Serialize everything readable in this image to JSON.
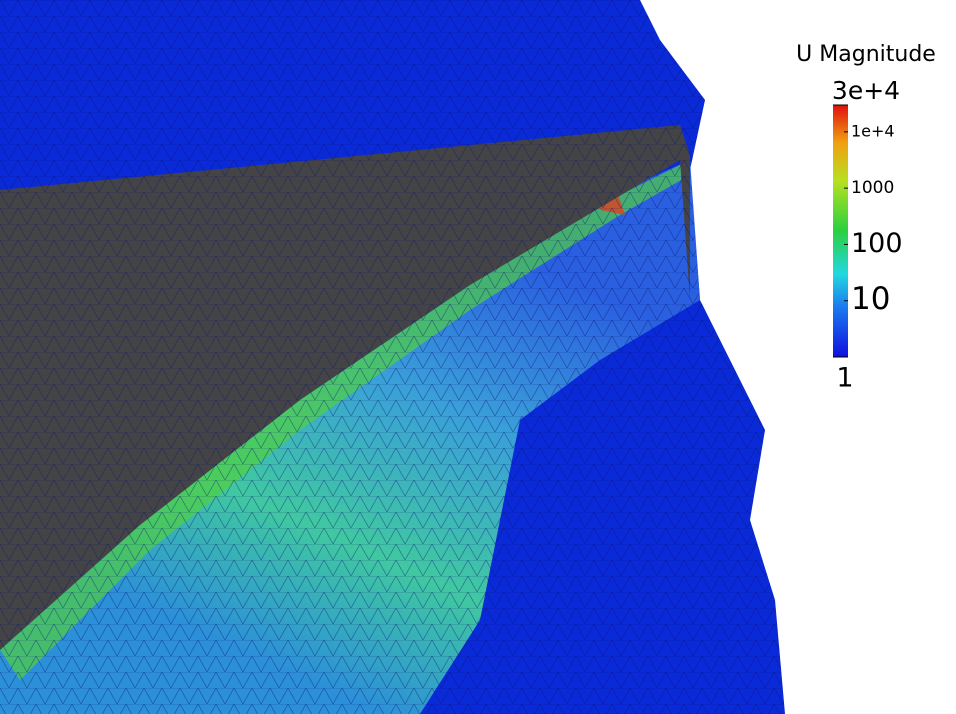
{
  "legend": {
    "title": "U Magnitude",
    "scale": "log",
    "max": {
      "value": 30000,
      "label": "3e+4"
    },
    "min": 1,
    "ticks": [
      {
        "value": 10000,
        "label": "1e+4"
      },
      1000,
      100,
      10
    ]
  }
}
